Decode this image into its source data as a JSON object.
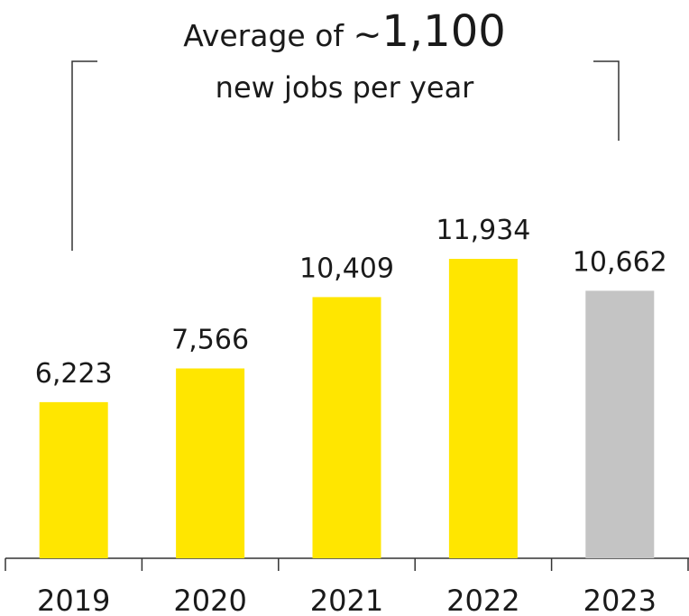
{
  "annotation": {
    "prefix": "Average of ",
    "tilde": "~",
    "value": "1,100",
    "line2": "new jobs per year"
  },
  "chart_data": {
    "type": "bar",
    "categories": [
      "2019",
      "2020",
      "2021",
      "2022",
      "2023"
    ],
    "values": [
      6223,
      7566,
      10409,
      11934,
      10662
    ],
    "value_labels": [
      "6,223",
      "7,566",
      "10,409",
      "11,934",
      "10,662"
    ],
    "title": "",
    "xlabel": "",
    "ylabel": "",
    "ylim": [
      0,
      11934
    ],
    "grid": false,
    "bar_colors": [
      "#FFE600",
      "#FFE600",
      "#FFE600",
      "#FFE600",
      "#C4C4C4"
    ],
    "bracket_span": [
      "2019",
      "2023"
    ]
  },
  "colors": {
    "highlight": "#FFE600",
    "muted": "#C4C4C4",
    "text": "#1a1a1a",
    "axis": "#333333"
  }
}
